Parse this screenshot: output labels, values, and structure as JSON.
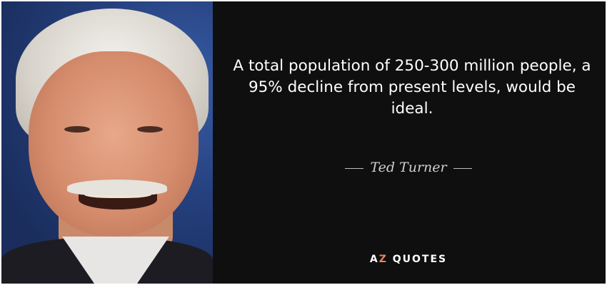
{
  "quote": {
    "text": "A total population of 250-300 million people, a 95% decline from present levels, would be ideal.",
    "author": "Ted Turner"
  },
  "logo": {
    "a": "A",
    "z": "Z",
    "rest": " QUOTES",
    "accent": "#e8845a"
  },
  "colors": {
    "background": "#0f0f0f",
    "text": "#ffffff"
  }
}
